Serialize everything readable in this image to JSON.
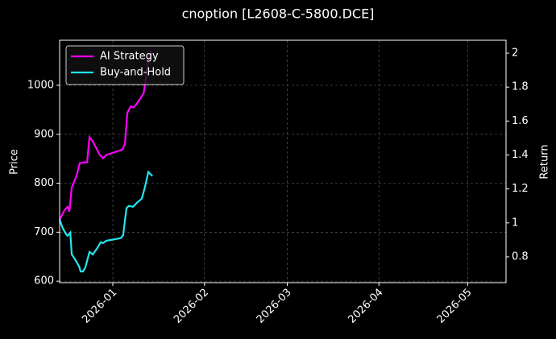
{
  "chart_data": {
    "type": "line",
    "title": "cnoption [L2608-C-5800.DCE]",
    "ylabel": "Price",
    "y2label": "Return",
    "xlim": [
      -18,
      133
    ],
    "xticks": [
      {
        "value": 0,
        "label": "2026-01"
      },
      {
        "value": 31,
        "label": "2026-02"
      },
      {
        "value": 59,
        "label": "2026-03"
      },
      {
        "value": 90,
        "label": "2026-04"
      },
      {
        "value": 120,
        "label": "2026-05"
      }
    ],
    "ylim": [
      597,
      1092
    ],
    "yticks": [
      600,
      700,
      800,
      900,
      1000
    ],
    "y2lim": [
      0.648,
      2.076
    ],
    "y2ticks": [
      0.8,
      1.0,
      1.2,
      1.4,
      1.6,
      1.8,
      2.0
    ],
    "grid": true,
    "legend": "upper left",
    "series": [
      {
        "name": "AI Strategy",
        "color": "#ff00ff",
        "axis": "y2",
        "x": [
          -18.0,
          -16.3,
          -15.3,
          -14.7,
          -13.9,
          -12.3,
          -11.2,
          -9.8,
          -8.7,
          -7.9,
          -6.8,
          -5.7,
          -4.4,
          -3.3,
          -2.2,
          -0.5,
          1.1,
          3.3,
          4.1,
          4.9,
          6.0,
          7.1,
          8.2,
          9.3,
          10.4,
          11.2,
          12.0,
          12.8
        ],
        "values": [
          1.019,
          1.076,
          1.095,
          1.067,
          1.209,
          1.276,
          1.352,
          1.357,
          1.357,
          1.505,
          1.481,
          1.443,
          1.4,
          1.381,
          1.4,
          1.41,
          1.419,
          1.433,
          1.467,
          1.648,
          1.686,
          1.681,
          1.705,
          1.733,
          1.762,
          1.852,
          1.957,
          2.019
        ]
      },
      {
        "name": "Buy-and-Hold",
        "color": "#22e5f0",
        "axis": "y2",
        "x": [
          -18.0,
          -16.9,
          -15.8,
          -15.3,
          -14.4,
          -13.9,
          -12.8,
          -11.4,
          -10.9,
          -10.1,
          -9.3,
          -7.9,
          -6.8,
          -5.4,
          -4.1,
          -3.3,
          -2.2,
          -0.5,
          1.1,
          2.7,
          3.5,
          4.6,
          5.4,
          6.8,
          8.2,
          9.8,
          10.9,
          12.0,
          13.4
        ],
        "values": [
          1.019,
          0.967,
          0.933,
          0.924,
          0.943,
          0.814,
          0.786,
          0.743,
          0.714,
          0.714,
          0.738,
          0.829,
          0.814,
          0.848,
          0.886,
          0.881,
          0.895,
          0.9,
          0.905,
          0.91,
          0.929,
          1.086,
          1.1,
          1.095,
          1.119,
          1.143,
          1.214,
          1.3,
          1.276
        ]
      }
    ]
  }
}
